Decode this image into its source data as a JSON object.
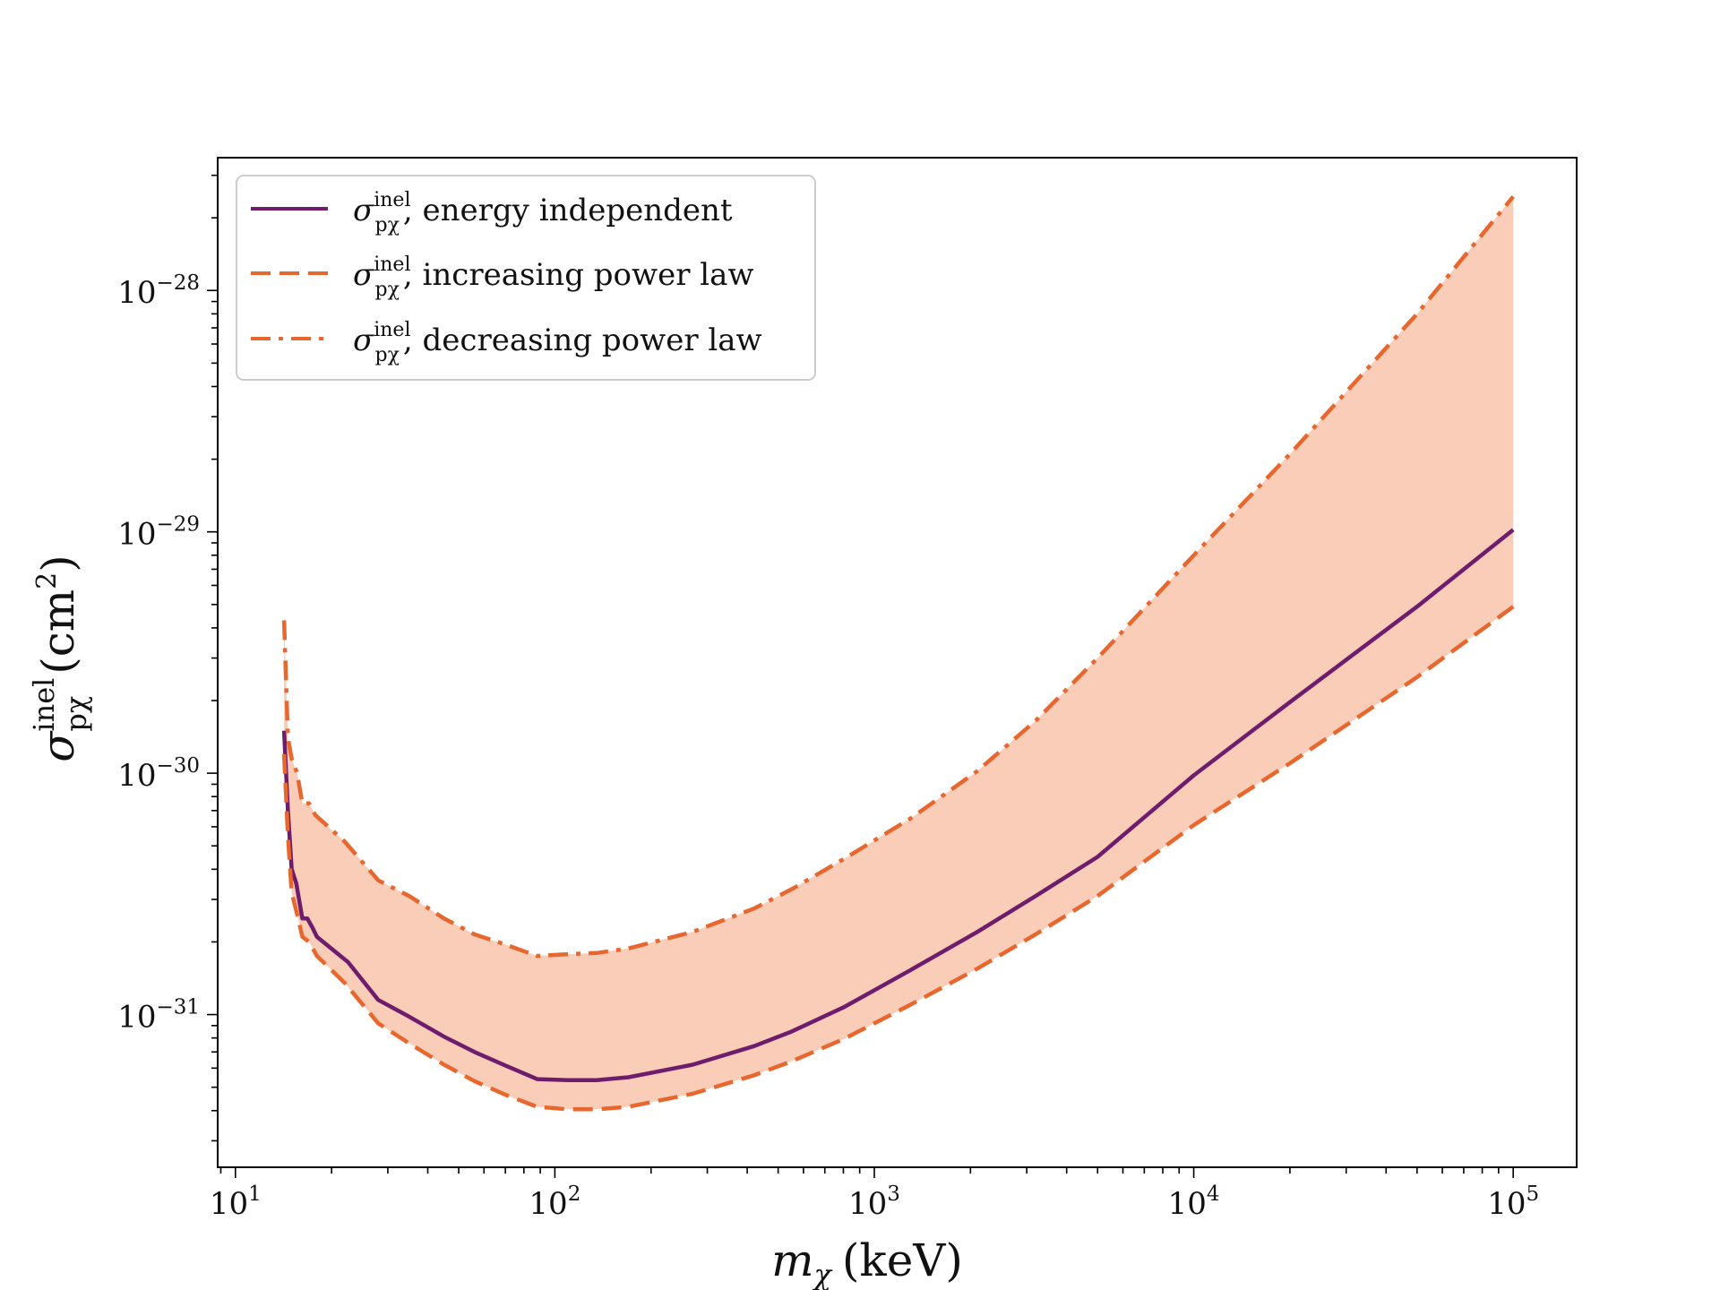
{
  "chart_data": {
    "type": "line",
    "title": "",
    "xlabel": {
      "symbol": "m",
      "sub": "χ",
      "unit": "(keV)"
    },
    "ylabel": {
      "symbol": "σ",
      "sup": "inel",
      "sub": "pχ",
      "unit": "(cm",
      "unit_sup": "2",
      "unit_close": ")"
    },
    "xscale": "log",
    "yscale": "log",
    "xlim": [
      8.8,
      158000
    ],
    "ylim": [
      2.33e-32,
      3.55e-28
    ],
    "x_ticks": [
      {
        "value": 10,
        "base": "10",
        "exp": "1"
      },
      {
        "value": 100,
        "base": "10",
        "exp": "2"
      },
      {
        "value": 1000,
        "base": "10",
        "exp": "3"
      },
      {
        "value": 10000,
        "base": "10",
        "exp": "4"
      },
      {
        "value": 100000,
        "base": "10",
        "exp": "5"
      }
    ],
    "y_ticks": [
      {
        "value": 1e-31,
        "base": "10",
        "exp": "−31"
      },
      {
        "value": 1e-30,
        "base": "10",
        "exp": "−30"
      },
      {
        "value": 1e-29,
        "base": "10",
        "exp": "−29"
      },
      {
        "value": 1e-28,
        "base": "10",
        "exp": "−28"
      }
    ],
    "grid": false,
    "legend": {
      "placement": "top-left"
    },
    "colors": {
      "energy_independent": "#6e1c6c",
      "power_law": "#e8672e",
      "band_fill": "#f9cdb8"
    },
    "series": [
      {
        "id": "energy_independent",
        "label": {
          "symbol": "σ",
          "sup": "inel",
          "sub": "pχ",
          "text": ", energy independent"
        },
        "style": "solid",
        "x": [
          14.2,
          14.6,
          15.0,
          15.5,
          16.2,
          16.8,
          17.4,
          18.0,
          22.5,
          28.0,
          35.0,
          45.0,
          56.0,
          70.0,
          88.0,
          110.0,
          135.0,
          170.0,
          270.0,
          420.0,
          550.0,
          800.0,
          1300.0,
          2100.0,
          3200.0,
          5000.0,
          10000.0,
          20000.0,
          50000.0,
          100000.0
        ],
        "y": [
          1.5e-30,
          7e-31,
          4e-31,
          3.5e-31,
          2.5e-31,
          2.5e-31,
          2.3e-31,
          2.1e-31,
          1.65e-31,
          1.15e-31,
          9.8e-32,
          8.1e-32,
          7e-32,
          6.15e-32,
          5.4e-32,
          5.35e-32,
          5.35e-32,
          5.5e-32,
          6.2e-32,
          7.4e-32,
          8.5e-32,
          1.07e-31,
          1.53e-31,
          2.2e-31,
          3.1e-31,
          4.5e-31,
          9.8e-31,
          1.97e-30,
          4.9e-30,
          1.02e-29
        ]
      },
      {
        "id": "increasing_power_law",
        "label": {
          "symbol": "σ",
          "sup": "inel",
          "sub": "pχ",
          "text": ", increasing power law"
        },
        "style": "dashed",
        "x": [
          14.2,
          14.6,
          15.0,
          15.6,
          16.2,
          17.0,
          18.0,
          22.0,
          28.0,
          35.0,
          45.0,
          56.0,
          70.0,
          88.0,
          110.0,
          135.0,
          170.0,
          270.0,
          420.0,
          550.0,
          800.0,
          1300.0,
          2100.0,
          3200.0,
          5000.0,
          10000.0,
          20000.0,
          50000.0,
          100000.0
        ],
        "y": [
          1.2e-30,
          5.5e-31,
          3.2e-31,
          2.6e-31,
          2.1e-31,
          2e-31,
          1.75e-31,
          1.35e-31,
          9.2e-32,
          7.6e-32,
          6.2e-32,
          5.3e-32,
          4.65e-32,
          4.15e-32,
          4.05e-32,
          4.05e-32,
          4.15e-32,
          4.7e-32,
          5.6e-32,
          6.4e-32,
          7.9e-32,
          1.1e-31,
          1.55e-31,
          2.15e-31,
          3.1e-31,
          6.1e-31,
          1.1e-30,
          2.5e-30,
          4.9e-30
        ]
      },
      {
        "id": "decreasing_power_law",
        "label": {
          "symbol": "σ",
          "sup": "inel",
          "sub": "pχ",
          "text": ", decreasing power law"
        },
        "style": "dashdot",
        "x": [
          14.2,
          14.6,
          15.0,
          15.6,
          16.2,
          17.0,
          17.8,
          18.5,
          22.0,
          28.0,
          35.0,
          45.0,
          56.0,
          70.0,
          88.0,
          110.0,
          135.0,
          170.0,
          270.0,
          420.0,
          550.0,
          800.0,
          1300.0,
          2100.0,
          3200.0,
          5000.0,
          10000.0,
          20000.0,
          50000.0,
          100000.0
        ],
        "y": [
          4.3e-30,
          1.4e-30,
          1.15e-30,
          1e-30,
          7.5e-31,
          7.5e-31,
          6.7e-31,
          6.4e-31,
          5.2e-31,
          3.6e-31,
          3.1e-31,
          2.5e-31,
          2.15e-31,
          1.95e-31,
          1.75e-31,
          1.78e-31,
          1.8e-31,
          1.88e-31,
          2.2e-31,
          2.75e-31,
          3.3e-31,
          4.4e-31,
          6.5e-31,
          1.02e-30,
          1.65e-30,
          3e-30,
          8e-30,
          2.1e-29,
          8e-29,
          2.45e-28
        ]
      }
    ]
  }
}
